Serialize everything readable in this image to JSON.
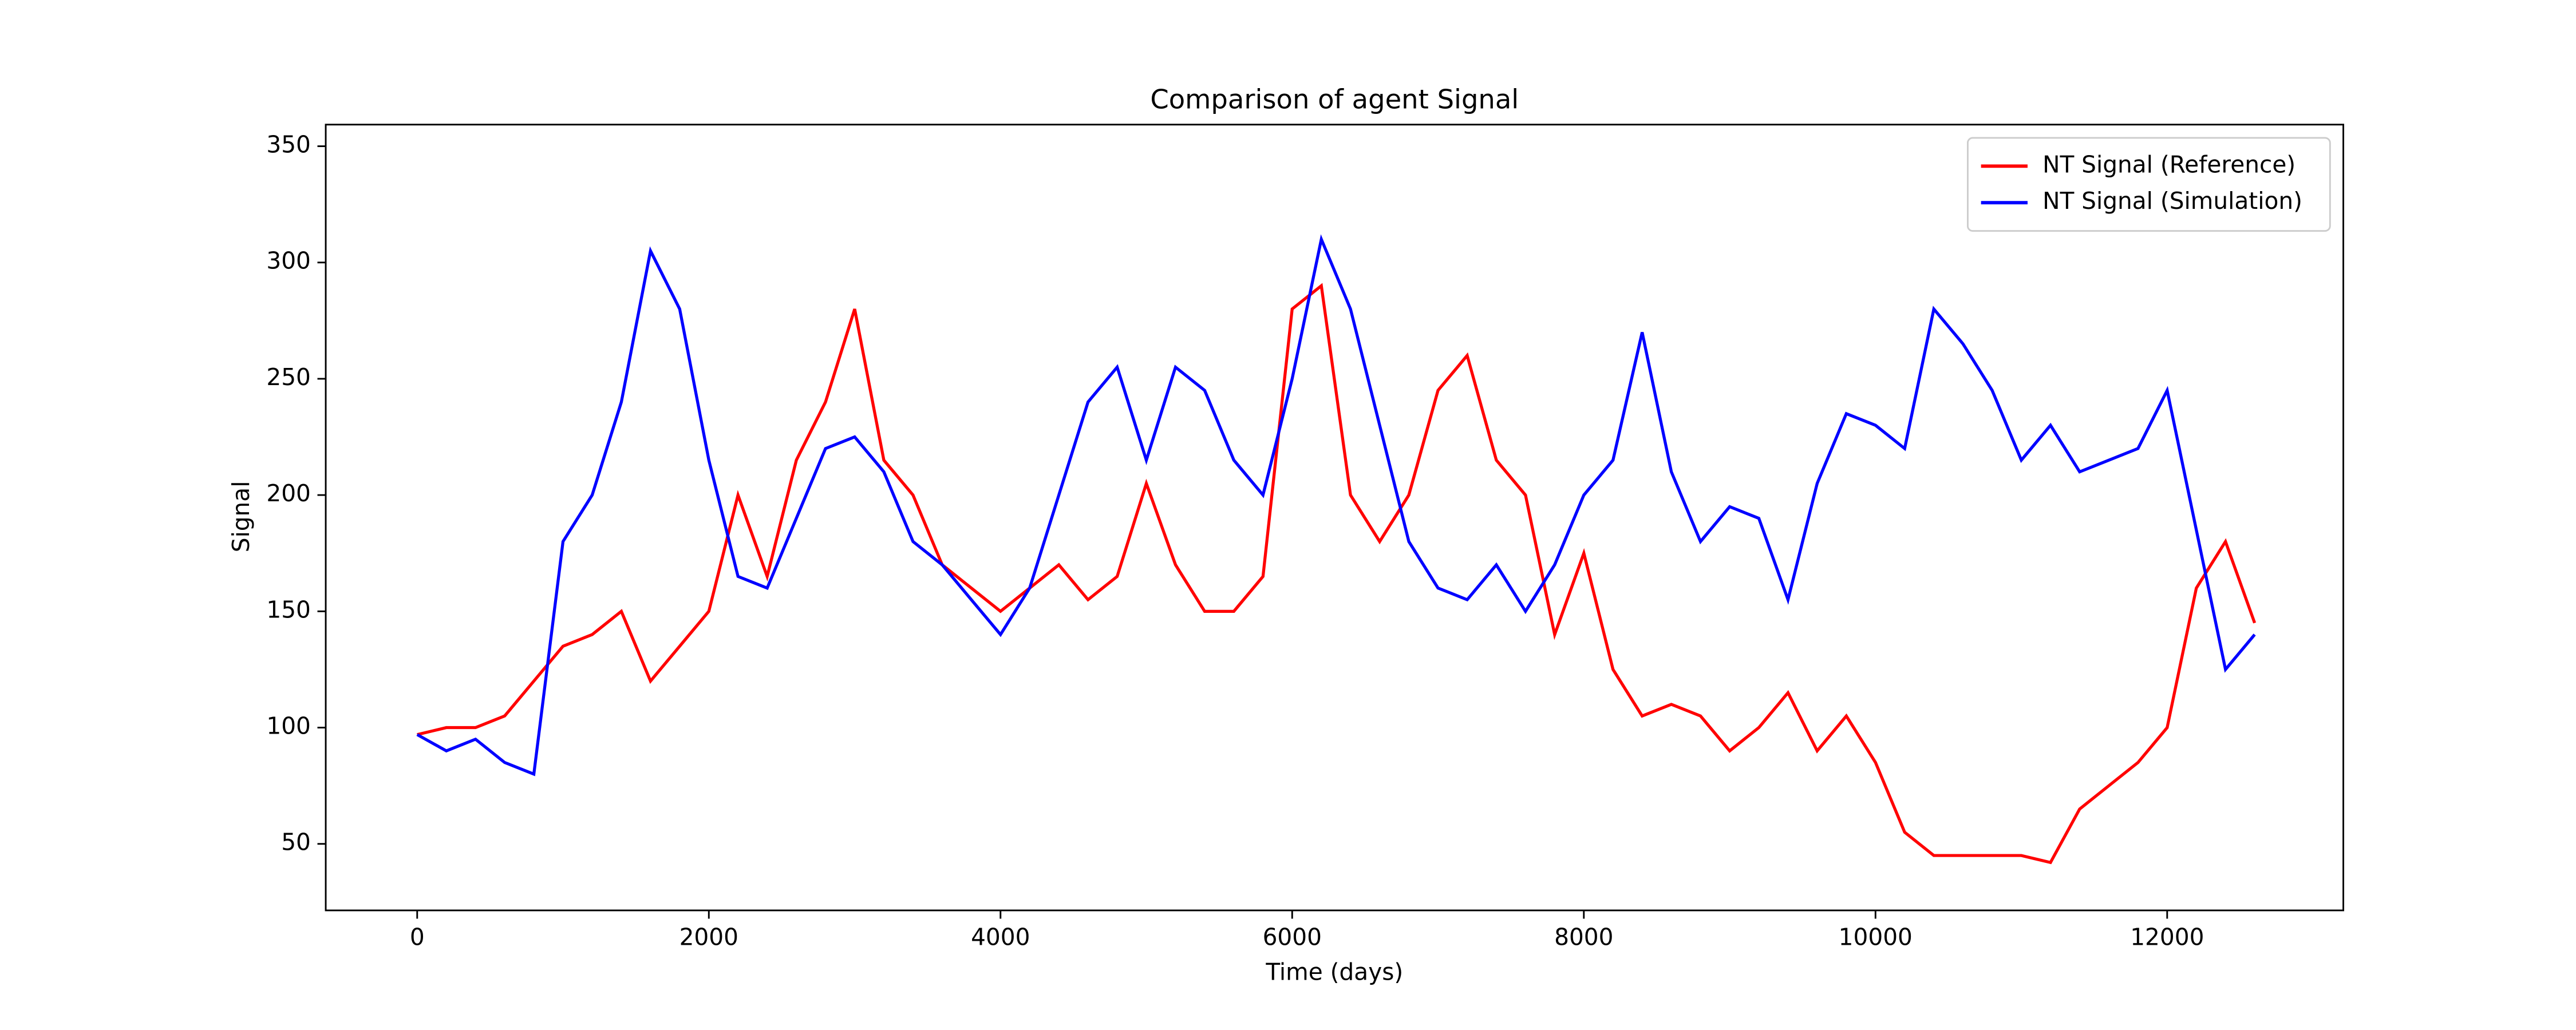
{
  "chart_data": {
    "type": "line",
    "title": "Comparison of agent Signal",
    "x_label": "Time (days)",
    "y_label": "Signal",
    "x": [
      0,
      200,
      400,
      600,
      800,
      1000,
      1200,
      1400,
      1600,
      1800,
      2000,
      2200,
      2400,
      2600,
      2800,
      3000,
      3200,
      3400,
      3600,
      3800,
      4000,
      4200,
      4400,
      4600,
      4800,
      5000,
      5200,
      5400,
      5600,
      5800,
      6000,
      6200,
      6400,
      6600,
      6800,
      7000,
      7200,
      7400,
      7600,
      7800,
      8000,
      8200,
      8400,
      8600,
      8800,
      9000,
      9200,
      9400,
      9600,
      9800,
      10000,
      10200,
      10400,
      10600,
      10800,
      11000,
      11200,
      11400,
      11600,
      11800,
      12000,
      12200,
      12400,
      12600
    ],
    "series": [
      {
        "name": "NT Signal (Reference)",
        "color": "#ff0000",
        "values": [
          97,
          100,
          100,
          105,
          120,
          135,
          140,
          150,
          120,
          135,
          150,
          200,
          165,
          215,
          240,
          280,
          215,
          200,
          170,
          160,
          150,
          160,
          170,
          155,
          165,
          205,
          170,
          150,
          150,
          165,
          280,
          290,
          200,
          180,
          200,
          245,
          260,
          215,
          200,
          140,
          175,
          125,
          105,
          110,
          105,
          90,
          100,
          115,
          90,
          105,
          85,
          55,
          45,
          45,
          45,
          45,
          42,
          65,
          75,
          85,
          100,
          160,
          180,
          145
        ]
      },
      {
        "name": "NT Signal (Simulation)",
        "color": "#0000ff",
        "values": [
          97,
          90,
          95,
          85,
          80,
          180,
          200,
          240,
          305,
          280,
          215,
          165,
          160,
          190,
          220,
          225,
          210,
          180,
          170,
          155,
          140,
          160,
          200,
          240,
          255,
          215,
          255,
          245,
          215,
          200,
          250,
          310,
          280,
          230,
          180,
          160,
          155,
          170,
          150,
          170,
          200,
          215,
          270,
          210,
          180,
          195,
          190,
          155,
          205,
          235,
          230,
          220,
          280,
          265,
          245,
          215,
          230,
          210,
          215,
          220,
          245,
          185,
          125,
          140
        ]
      }
    ],
    "xlim": [
      -627,
      13208
    ],
    "ylim": [
      21.4,
      359.3
    ],
    "xticks": [
      0,
      2000,
      4000,
      6000,
      8000,
      10000,
      12000
    ],
    "yticks": [
      50,
      100,
      150,
      200,
      250,
      300,
      350
    ],
    "legend": "upper right"
  }
}
